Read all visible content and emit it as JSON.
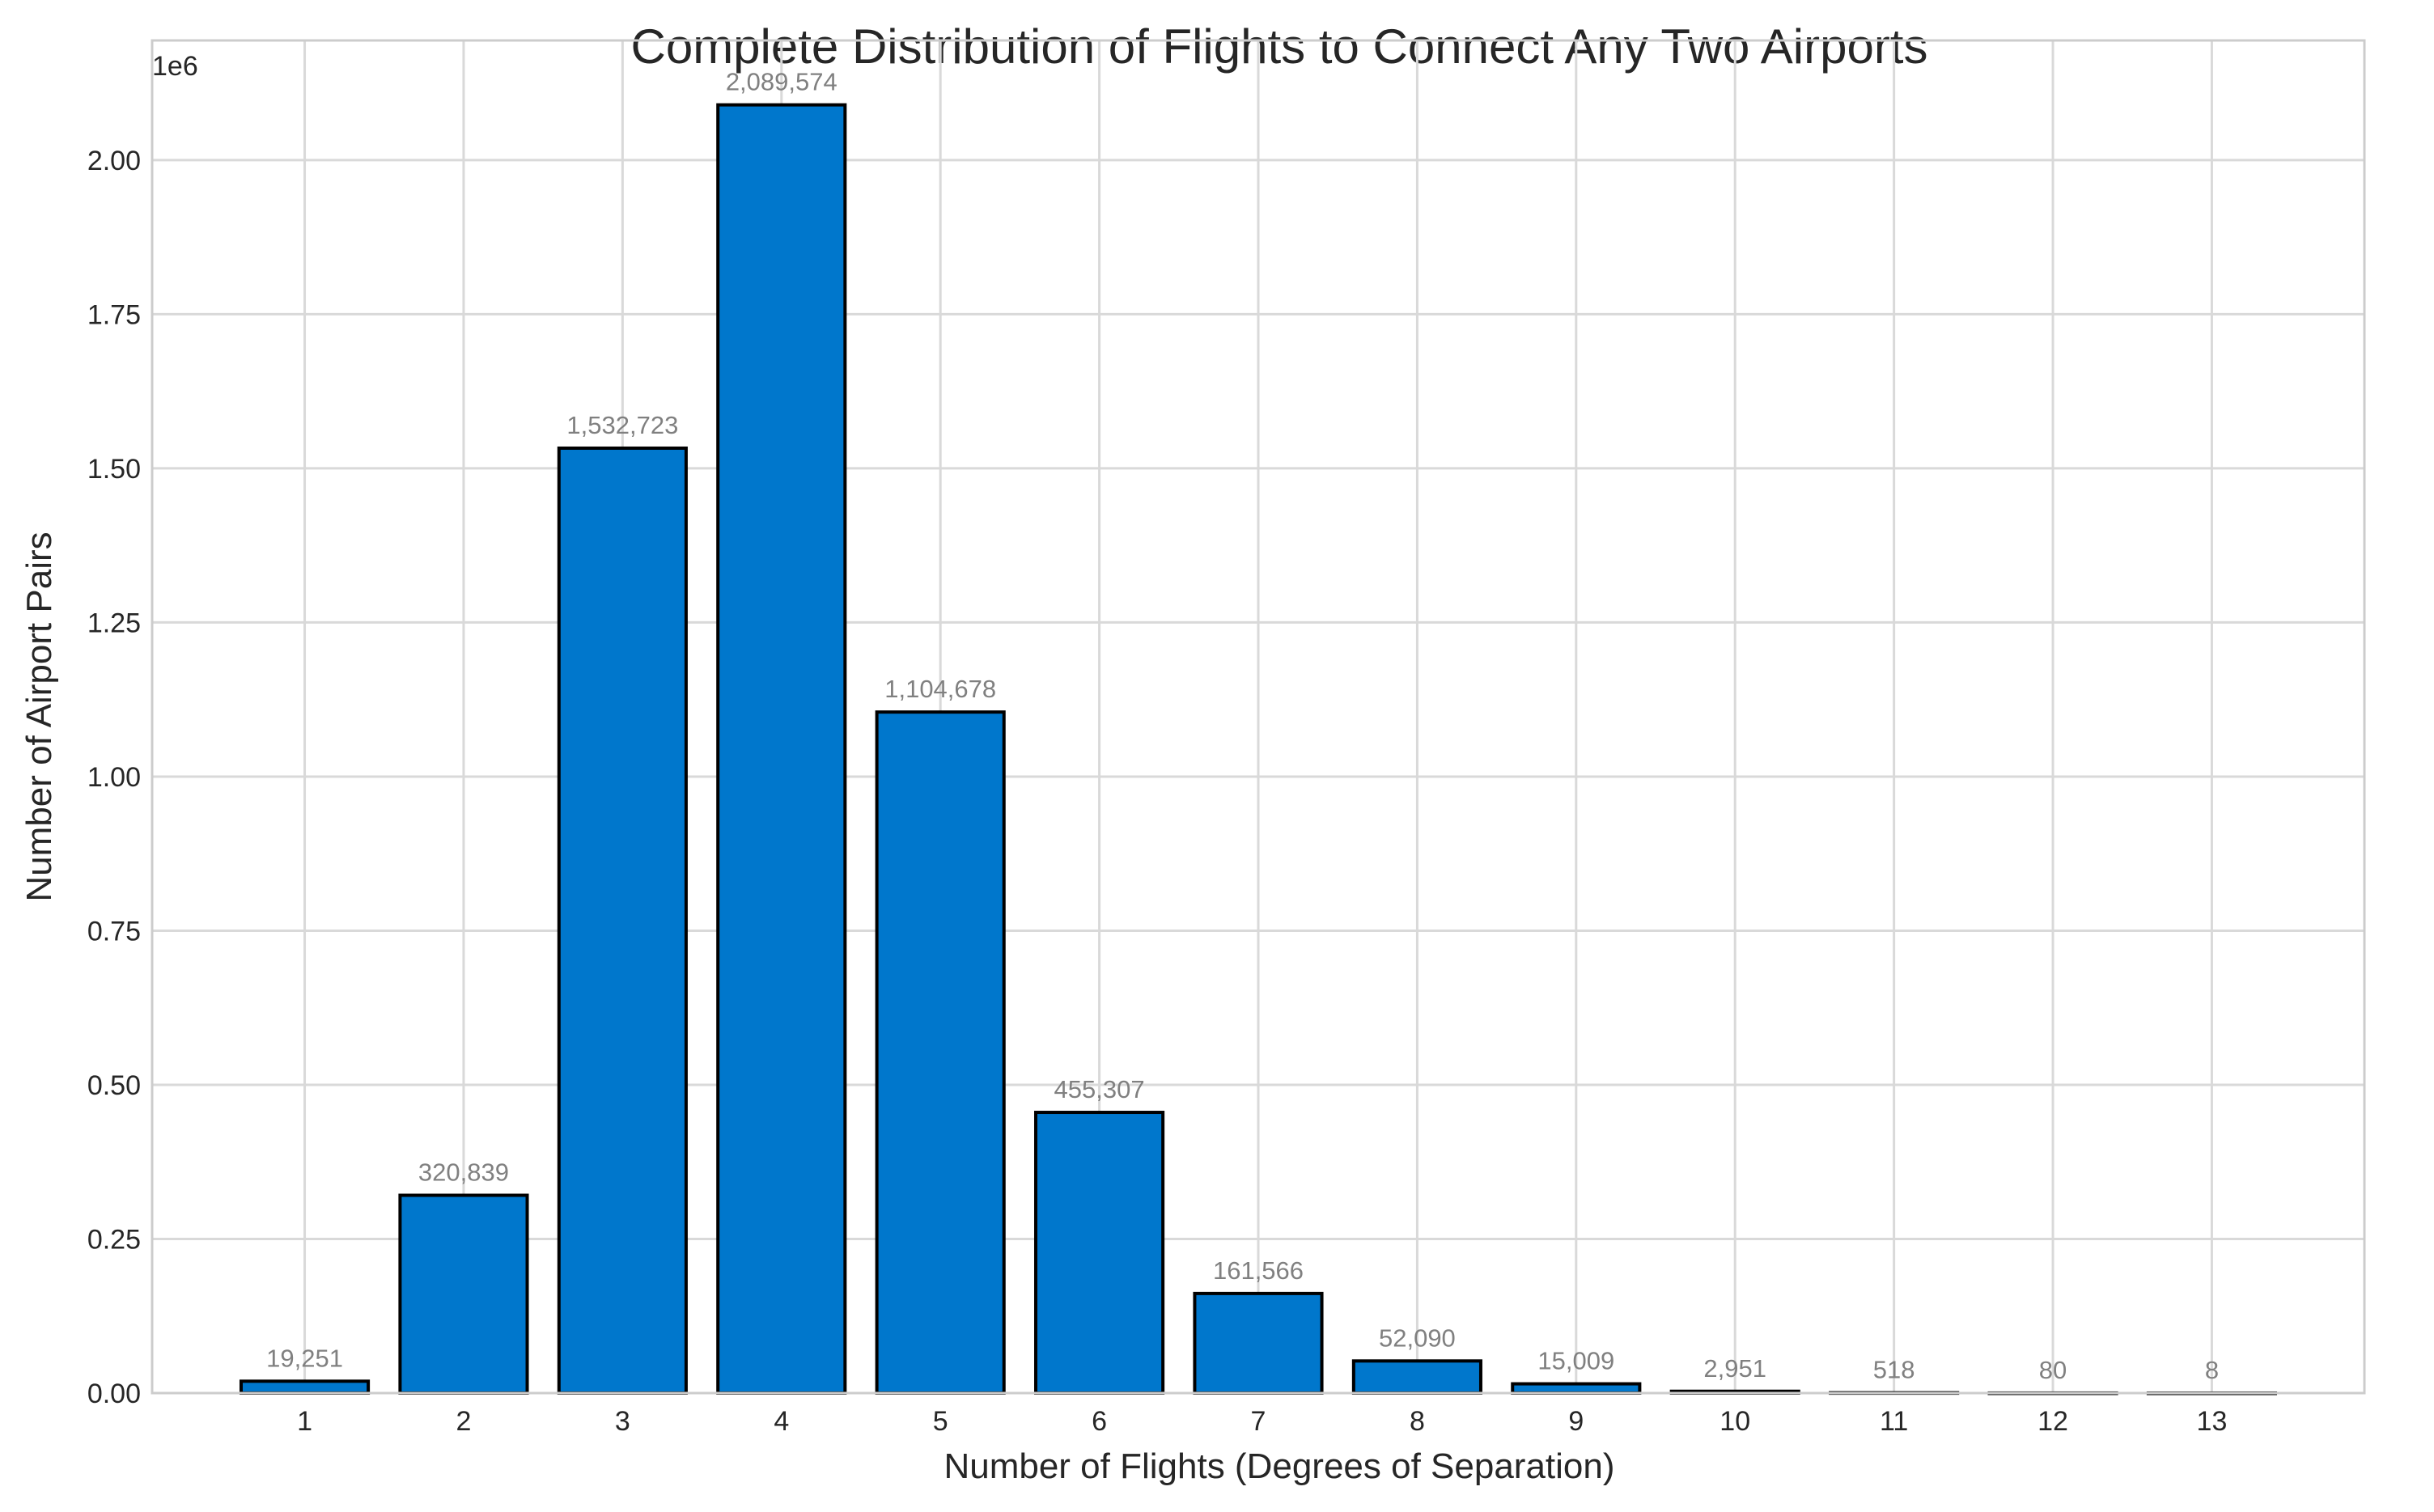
{
  "chart_data": {
    "type": "bar",
    "title": "Complete Distribution of Flights to Connect Any Two Airports",
    "xlabel": "Number of Flights (Degrees of Separation)",
    "ylabel": "Number of Airport Pairs",
    "y_offset_label": "1e6",
    "categories": [
      "1",
      "2",
      "3",
      "4",
      "5",
      "6",
      "7",
      "8",
      "9",
      "10",
      "11",
      "12",
      "13"
    ],
    "values": [
      19251,
      320839,
      1532723,
      2089574,
      1104678,
      455307,
      161566,
      52090,
      15009,
      2951,
      518,
      80,
      8
    ],
    "value_labels": [
      "19,251",
      "320,839",
      "1,532,723",
      "2,089,574",
      "1,104,678",
      "455,307",
      "161,566",
      "52,090",
      "15,009",
      "2,951",
      "518",
      "80",
      "8"
    ],
    "y_ticks": [
      0,
      250000,
      500000,
      750000,
      1000000,
      1250000,
      1500000,
      1750000,
      2000000
    ],
    "y_tick_labels": [
      "0.00",
      "0.25",
      "0.50",
      "0.75",
      "1.00",
      "1.25",
      "1.50",
      "1.75",
      "2.00"
    ],
    "ylim": [
      0,
      2194053
    ],
    "xlim": [
      -0.96,
      12.96
    ],
    "grid": true,
    "legend": "none",
    "bar_color": "#0077CC",
    "edge_color": "#000000"
  }
}
